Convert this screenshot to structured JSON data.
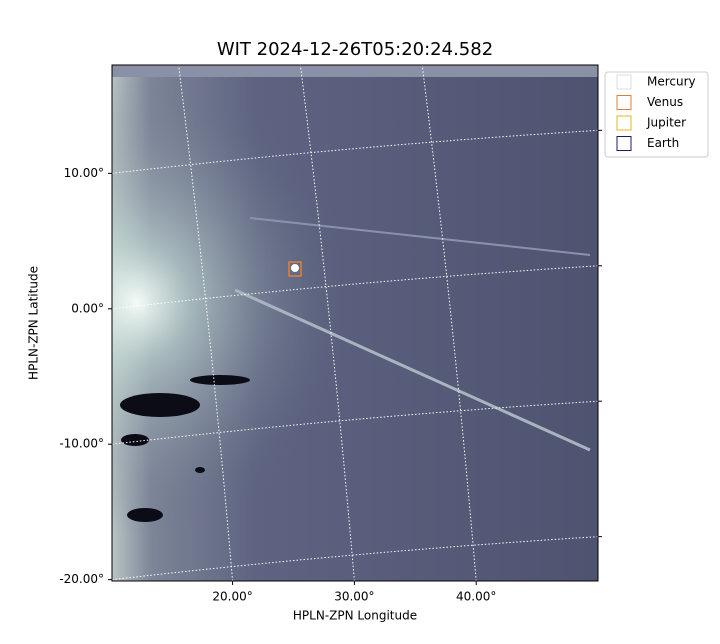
{
  "chart_data": {
    "type": "image",
    "title": "WIT 2024-12-26T05:20:24.582",
    "xlabel": "HPLN-ZPN Longitude",
    "ylabel": "HPLN-ZPN Latitude",
    "xlim": [
      10.1,
      50.0
    ],
    "ylim": [
      -20.1,
      18.0
    ],
    "xticks": [
      {
        "value": 20,
        "label": "20.00°"
      },
      {
        "value": 30,
        "label": "30.00°"
      },
      {
        "value": 40,
        "label": "40.00°"
      }
    ],
    "yticks": [
      {
        "value": 10,
        "label": "10.00°"
      },
      {
        "value": 0,
        "label": "0.00°"
      },
      {
        "value": -10,
        "label": "-10.00°"
      },
      {
        "value": -20,
        "label": "-20.00°"
      }
    ],
    "grid": true,
    "series": [
      {
        "name": "Mercury",
        "color": "#dddddd"
      },
      {
        "name": "Venus",
        "color": "#e0813a"
      },
      {
        "name": "Jupiter",
        "color": "#e6b422"
      },
      {
        "name": "Earth",
        "color": "#1a1a6e"
      }
    ]
  }
}
